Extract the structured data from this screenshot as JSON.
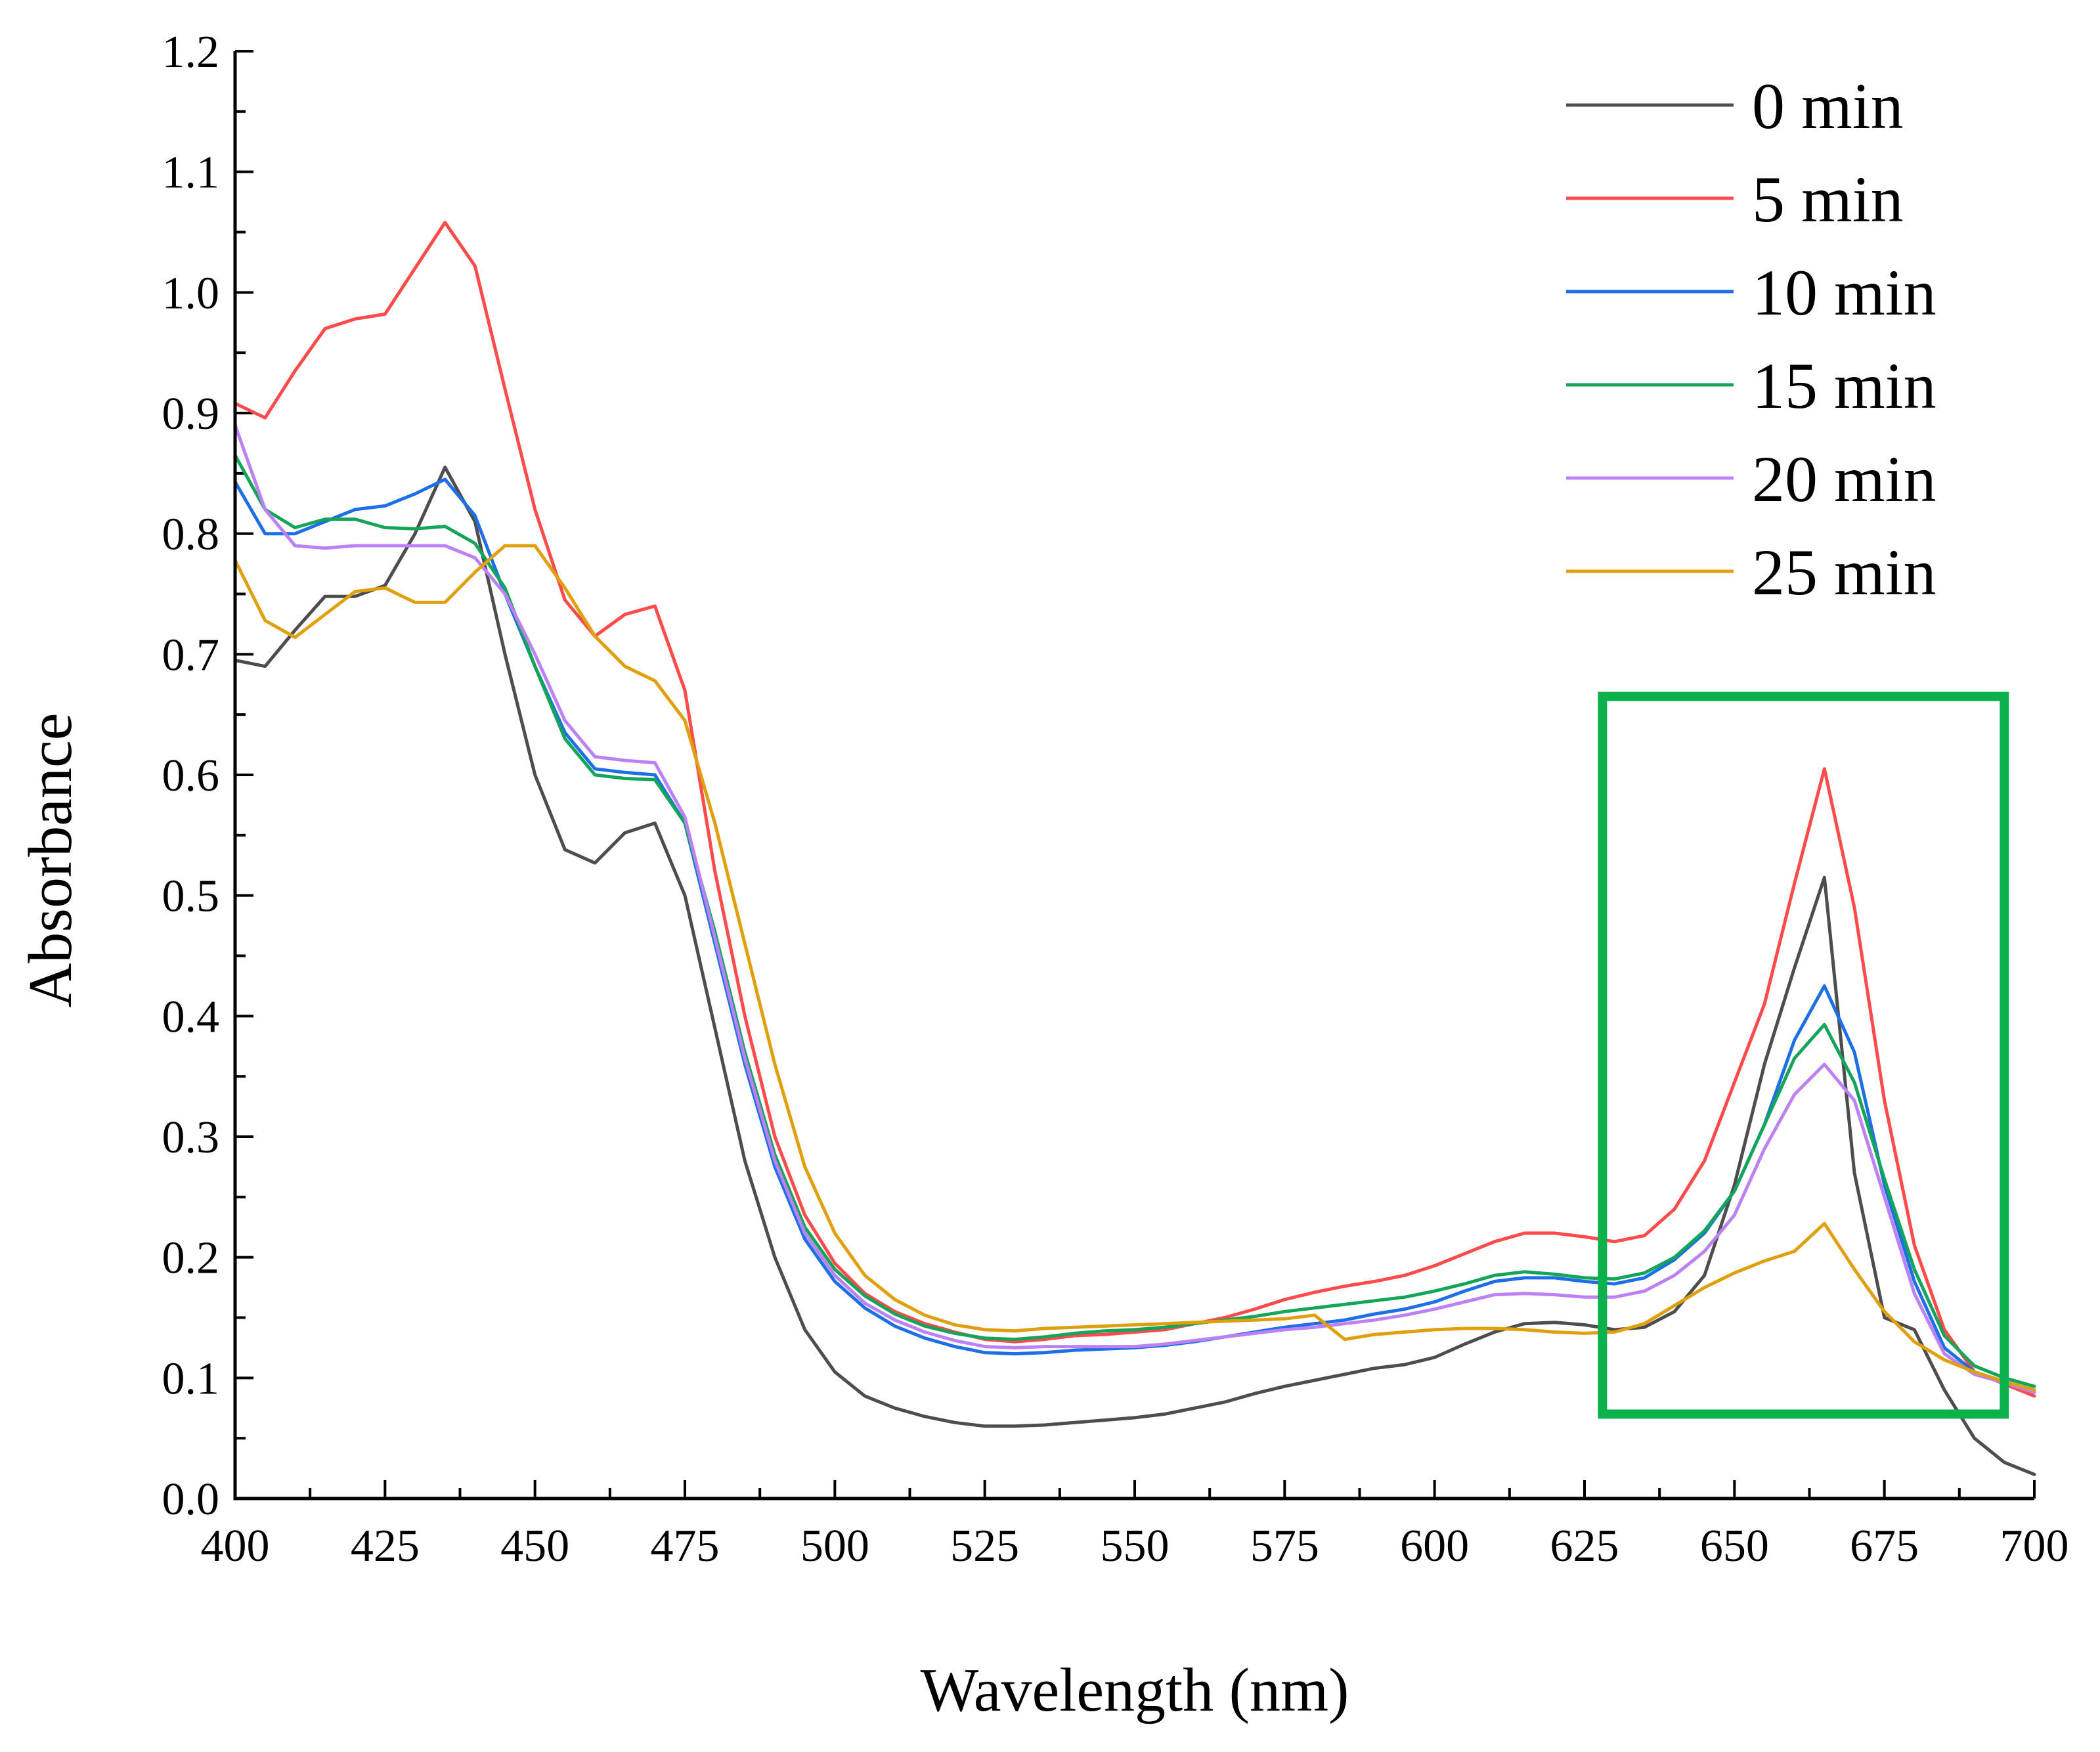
{
  "chart_data": {
    "type": "line",
    "title": "",
    "xlabel": "Wavelength (nm)",
    "ylabel": "Absorbance",
    "xlim": [
      400,
      700
    ],
    "ylim": [
      0.0,
      1.2
    ],
    "xticks": [
      400,
      425,
      450,
      475,
      500,
      525,
      550,
      575,
      600,
      625,
      650,
      675,
      700
    ],
    "yticks": [
      0.0,
      0.1,
      0.2,
      0.3,
      0.4,
      0.5,
      0.6,
      0.7,
      0.8,
      0.9,
      1.0,
      1.1,
      1.2
    ],
    "ytick_decimals": 1,
    "grid": false,
    "legend_position": "top-right",
    "highlight": {
      "x_range": [
        628,
        695
      ],
      "y_range": [
        0.07,
        0.665
      ],
      "color": "#0BB14A"
    },
    "x": [
      400,
      405,
      410,
      415,
      420,
      425,
      430,
      435,
      440,
      445,
      450,
      455,
      460,
      465,
      470,
      475,
      480,
      485,
      490,
      495,
      500,
      505,
      510,
      515,
      520,
      525,
      530,
      535,
      540,
      545,
      550,
      555,
      560,
      565,
      570,
      575,
      580,
      585,
      590,
      595,
      600,
      605,
      610,
      615,
      620,
      625,
      630,
      635,
      640,
      645,
      650,
      655,
      660,
      665,
      670,
      675,
      680,
      685,
      690,
      695,
      700
    ],
    "series": [
      {
        "name": "0 min",
        "color": "#4D4D4D",
        "values": [
          0.695,
          0.69,
          0.72,
          0.748,
          0.748,
          0.757,
          0.8,
          0.855,
          0.81,
          0.7,
          0.6,
          0.538,
          0.527,
          0.552,
          0.56,
          0.5,
          0.39,
          0.28,
          0.2,
          0.14,
          0.105,
          0.085,
          0.075,
          0.068,
          0.063,
          0.06,
          0.06,
          0.061,
          0.063,
          0.065,
          0.067,
          0.07,
          0.075,
          0.08,
          0.087,
          0.093,
          0.098,
          0.103,
          0.108,
          0.111,
          0.117,
          0.128,
          0.138,
          0.145,
          0.146,
          0.144,
          0.14,
          0.142,
          0.155,
          0.185,
          0.26,
          0.36,
          0.44,
          0.515,
          0.27,
          0.15,
          0.14,
          0.09,
          0.05,
          0.03,
          0.02
        ]
      },
      {
        "name": "5 min",
        "color": "#FF4B4B",
        "values": [
          0.908,
          0.896,
          0.935,
          0.97,
          0.978,
          0.982,
          1.02,
          1.058,
          1.022,
          0.92,
          0.82,
          0.745,
          0.715,
          0.733,
          0.74,
          0.67,
          0.52,
          0.4,
          0.3,
          0.235,
          0.195,
          0.17,
          0.155,
          0.145,
          0.138,
          0.132,
          0.13,
          0.132,
          0.135,
          0.136,
          0.138,
          0.14,
          0.145,
          0.15,
          0.157,
          0.165,
          0.171,
          0.176,
          0.18,
          0.185,
          0.193,
          0.203,
          0.213,
          0.22,
          0.22,
          0.217,
          0.213,
          0.218,
          0.24,
          0.28,
          0.345,
          0.41,
          0.51,
          0.605,
          0.49,
          0.33,
          0.21,
          0.14,
          0.105,
          0.095,
          0.085
        ]
      },
      {
        "name": "10 min",
        "color": "#1E6FE6",
        "values": [
          0.843,
          0.8,
          0.8,
          0.81,
          0.82,
          0.823,
          0.833,
          0.845,
          0.815,
          0.75,
          0.69,
          0.635,
          0.605,
          0.602,
          0.6,
          0.56,
          0.46,
          0.36,
          0.275,
          0.215,
          0.18,
          0.158,
          0.143,
          0.133,
          0.126,
          0.121,
          0.12,
          0.121,
          0.123,
          0.124,
          0.125,
          0.127,
          0.13,
          0.134,
          0.138,
          0.142,
          0.145,
          0.148,
          0.153,
          0.157,
          0.163,
          0.172,
          0.18,
          0.183,
          0.183,
          0.18,
          0.178,
          0.183,
          0.198,
          0.22,
          0.255,
          0.31,
          0.38,
          0.425,
          0.37,
          0.26,
          0.18,
          0.125,
          0.105,
          0.097,
          0.088
        ]
      },
      {
        "name": "15 min",
        "color": "#14A45A",
        "values": [
          0.865,
          0.82,
          0.805,
          0.812,
          0.812,
          0.805,
          0.804,
          0.806,
          0.792,
          0.755,
          0.69,
          0.63,
          0.6,
          0.597,
          0.596,
          0.56,
          0.47,
          0.37,
          0.285,
          0.225,
          0.19,
          0.168,
          0.153,
          0.143,
          0.137,
          0.133,
          0.132,
          0.134,
          0.137,
          0.139,
          0.14,
          0.142,
          0.145,
          0.148,
          0.151,
          0.155,
          0.158,
          0.161,
          0.164,
          0.167,
          0.172,
          0.178,
          0.185,
          0.188,
          0.186,
          0.183,
          0.182,
          0.187,
          0.2,
          0.222,
          0.255,
          0.31,
          0.365,
          0.393,
          0.345,
          0.265,
          0.19,
          0.135,
          0.11,
          0.1,
          0.093
        ]
      },
      {
        "name": "20 min",
        "color": "#BC82F5",
        "values": [
          0.89,
          0.82,
          0.79,
          0.788,
          0.79,
          0.79,
          0.79,
          0.79,
          0.78,
          0.75,
          0.7,
          0.645,
          0.615,
          0.612,
          0.61,
          0.565,
          0.465,
          0.365,
          0.28,
          0.22,
          0.185,
          0.162,
          0.148,
          0.138,
          0.131,
          0.126,
          0.125,
          0.126,
          0.126,
          0.126,
          0.126,
          0.128,
          0.131,
          0.134,
          0.137,
          0.14,
          0.142,
          0.145,
          0.148,
          0.152,
          0.157,
          0.163,
          0.169,
          0.17,
          0.169,
          0.167,
          0.167,
          0.172,
          0.185,
          0.205,
          0.235,
          0.29,
          0.335,
          0.36,
          0.33,
          0.25,
          0.17,
          0.12,
          0.103,
          0.096,
          0.088
        ]
      },
      {
        "name": "25 min",
        "color": "#E0A00E",
        "values": [
          0.778,
          0.728,
          0.714,
          0.733,
          0.752,
          0.755,
          0.743,
          0.743,
          0.768,
          0.79,
          0.79,
          0.755,
          0.715,
          0.69,
          0.678,
          0.645,
          0.56,
          0.46,
          0.36,
          0.275,
          0.22,
          0.185,
          0.165,
          0.152,
          0.144,
          0.14,
          0.139,
          0.141,
          0.142,
          0.143,
          0.144,
          0.145,
          0.146,
          0.147,
          0.148,
          0.149,
          0.152,
          0.132,
          0.136,
          0.138,
          0.14,
          0.141,
          0.141,
          0.14,
          0.138,
          0.137,
          0.138,
          0.145,
          0.16,
          0.175,
          0.187,
          0.197,
          0.205,
          0.228,
          0.19,
          0.155,
          0.13,
          0.115,
          0.105,
          0.097,
          0.09
        ]
      }
    ]
  }
}
